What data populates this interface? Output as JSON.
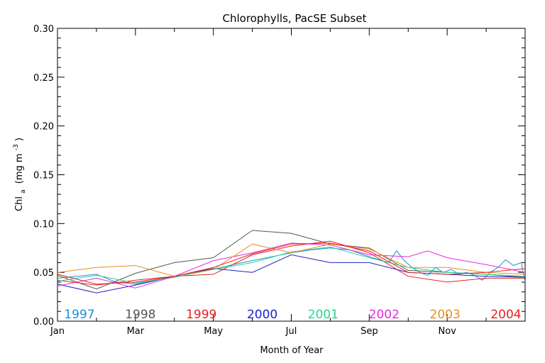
{
  "chart_data": {
    "type": "line",
    "title": "Chlorophylls, PacSE Subset",
    "xlabel": "Month of Year",
    "ylabel": "Chl",
    "ylabel_sub": "a",
    "ylabel_units": "(mg m",
    "ylabel_sup": "-3",
    "ylabel_close": ")",
    "xlim": [
      0,
      12
    ],
    "ylim": [
      0,
      0.3
    ],
    "x_ticks": [
      {
        "value": 0,
        "label": "Jan"
      },
      {
        "value": 2,
        "label": "Mar"
      },
      {
        "value": 4,
        "label": "May"
      },
      {
        "value": 6,
        "label": "Jul"
      },
      {
        "value": 8,
        "label": "Sep"
      },
      {
        "value": 10,
        "label": "Nov"
      }
    ],
    "y_ticks": [
      {
        "value": 0.0,
        "label": "0.00"
      },
      {
        "value": 0.05,
        "label": "0.05"
      },
      {
        "value": 0.1,
        "label": "0.10"
      },
      {
        "value": 0.15,
        "label": "0.15"
      },
      {
        "value": 0.2,
        "label": "0.20"
      },
      {
        "value": 0.25,
        "label": "0.25"
      },
      {
        "value": 0.3,
        "label": "0.30"
      }
    ],
    "grid": false,
    "legend_position": "bottom",
    "series": [
      {
        "name": "1997",
        "color": "#1e90d8",
        "points": [
          [
            0,
            0.044
          ],
          [
            0.5,
            0.046
          ],
          [
            1,
            0.048
          ],
          [
            1.5,
            0.04
          ],
          [
            2,
            0.038
          ],
          [
            2.5,
            0.042
          ],
          [
            3,
            0.046
          ],
          [
            3.5,
            0.05
          ],
          [
            4,
            0.053
          ],
          [
            4.5,
            0.058
          ],
          [
            5,
            0.062
          ],
          [
            5.5,
            0.066
          ],
          [
            6,
            0.07
          ],
          [
            6.5,
            0.073
          ],
          [
            7,
            0.075
          ],
          [
            7.5,
            0.073
          ],
          [
            8,
            0.066
          ],
          [
            8.5,
            0.06
          ],
          [
            8.7,
            0.072
          ],
          [
            8.9,
            0.062
          ],
          [
            9.1,
            0.055
          ],
          [
            9.3,
            0.05
          ],
          [
            9.5,
            0.047
          ],
          [
            9.7,
            0.055
          ],
          [
            9.9,
            0.05
          ],
          [
            10.1,
            0.053
          ],
          [
            10.3,
            0.048
          ],
          [
            10.5,
            0.05
          ],
          [
            10.7,
            0.047
          ],
          [
            10.9,
            0.042
          ],
          [
            11.1,
            0.05
          ],
          [
            11.3,
            0.055
          ],
          [
            11.5,
            0.063
          ],
          [
            11.7,
            0.057
          ],
          [
            11.9,
            0.06
          ],
          [
            12,
            0.04
          ]
        ]
      },
      {
        "name": "1998",
        "color": "#555555",
        "points": [
          [
            0,
            0.047
          ],
          [
            1,
            0.033
          ],
          [
            2,
            0.049
          ],
          [
            3,
            0.06
          ],
          [
            4,
            0.065
          ],
          [
            5,
            0.093
          ],
          [
            6,
            0.09
          ],
          [
            7,
            0.079
          ],
          [
            8,
            0.075
          ],
          [
            9,
            0.052
          ],
          [
            10,
            0.05
          ],
          [
            11,
            0.048
          ],
          [
            12,
            0.045
          ]
        ]
      },
      {
        "name": "1999",
        "color": "#e8201e",
        "points": [
          [
            0,
            0.042
          ],
          [
            1,
            0.037
          ],
          [
            2,
            0.042
          ],
          [
            3,
            0.046
          ],
          [
            4,
            0.048
          ],
          [
            5,
            0.068
          ],
          [
            6,
            0.077
          ],
          [
            7,
            0.082
          ],
          [
            8,
            0.07
          ],
          [
            9,
            0.046
          ],
          [
            10,
            0.04
          ],
          [
            11,
            0.044
          ],
          [
            12,
            0.044
          ]
        ]
      },
      {
        "name": "2000",
        "color": "#1e22c8",
        "points": [
          [
            0,
            0.038
          ],
          [
            1,
            0.029
          ],
          [
            2,
            0.037
          ],
          [
            3,
            0.046
          ],
          [
            4,
            0.054
          ],
          [
            5,
            0.05
          ],
          [
            6,
            0.068
          ],
          [
            7,
            0.06
          ],
          [
            8,
            0.06
          ],
          [
            9,
            0.05
          ],
          [
            10,
            0.048
          ],
          [
            11,
            0.046
          ],
          [
            12,
            0.045
          ]
        ]
      },
      {
        "name": "2001",
        "color": "#22d88a",
        "points": [
          [
            0,
            0.041
          ],
          [
            1,
            0.047
          ],
          [
            2,
            0.039
          ],
          [
            3,
            0.045
          ],
          [
            4,
            0.053
          ],
          [
            5,
            0.06
          ],
          [
            6,
            0.071
          ],
          [
            7,
            0.076
          ],
          [
            8,
            0.065
          ],
          [
            9,
            0.055
          ],
          [
            10,
            0.05
          ],
          [
            11,
            0.048
          ],
          [
            12,
            0.046
          ]
        ]
      },
      {
        "name": "2002",
        "color": "#e828e0",
        "points": [
          [
            0,
            0.036
          ],
          [
            1,
            0.044
          ],
          [
            2,
            0.034
          ],
          [
            3,
            0.046
          ],
          [
            4,
            0.062
          ],
          [
            5,
            0.07
          ],
          [
            6,
            0.08
          ],
          [
            7,
            0.078
          ],
          [
            8,
            0.068
          ],
          [
            9,
            0.066
          ],
          [
            9.5,
            0.072
          ],
          [
            10,
            0.065
          ],
          [
            11,
            0.058
          ],
          [
            12,
            0.05
          ]
        ]
      },
      {
        "name": "2003",
        "color": "#e89020",
        "points": [
          [
            0,
            0.05
          ],
          [
            1,
            0.055
          ],
          [
            2,
            0.057
          ],
          [
            3,
            0.046
          ],
          [
            4,
            0.053
          ],
          [
            5,
            0.079
          ],
          [
            6,
            0.07
          ],
          [
            7,
            0.079
          ],
          [
            8,
            0.074
          ],
          [
            9,
            0.055
          ],
          [
            10,
            0.055
          ],
          [
            11,
            0.05
          ],
          [
            12,
            0.048
          ]
        ]
      },
      {
        "name": "2004",
        "color": "#e8201e",
        "points": [
          [
            0,
            0.048
          ],
          [
            1,
            0.038
          ],
          [
            2,
            0.04
          ],
          [
            3,
            0.046
          ],
          [
            4,
            0.055
          ],
          [
            5,
            0.069
          ],
          [
            6,
            0.079
          ],
          [
            7,
            0.08
          ],
          [
            8,
            0.072
          ],
          [
            9,
            0.05
          ],
          [
            10,
            0.048
          ],
          [
            11,
            0.05
          ],
          [
            12,
            0.054
          ]
        ]
      }
    ]
  }
}
